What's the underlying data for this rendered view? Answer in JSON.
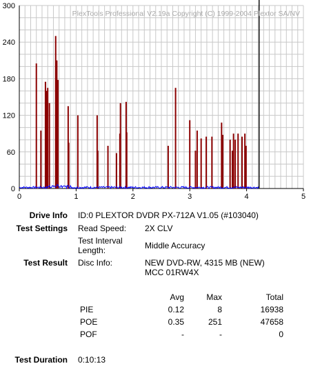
{
  "watermark": "PlexTools Professional V2.19a Copyright (C) 1999-2004 Plextor SA/NV",
  "chart_data": {
    "type": "bar",
    "x_ticks": [
      0,
      1,
      2,
      3,
      4,
      5
    ],
    "y_ticks": [
      0,
      60,
      120,
      180,
      240,
      300
    ],
    "xlim": [
      0,
      5
    ],
    "ylim": [
      0,
      300
    ],
    "grid": true,
    "end_marker_x": 4.22,
    "series": [
      {
        "color": "#8b0000",
        "type": "bar",
        "points": [
          [
            0.3,
            205
          ],
          [
            0.38,
            95
          ],
          [
            0.46,
            175
          ],
          [
            0.48,
            160
          ],
          [
            0.5,
            165
          ],
          [
            0.53,
            140
          ],
          [
            0.64,
            250
          ],
          [
            0.66,
            210
          ],
          [
            0.68,
            178
          ],
          [
            0.86,
            135
          ],
          [
            0.87,
            75
          ],
          [
            1.03,
            120
          ],
          [
            1.37,
            120
          ],
          [
            1.38,
            62
          ],
          [
            1.56,
            70
          ],
          [
            1.71,
            58
          ],
          [
            1.77,
            90
          ],
          [
            1.78,
            140
          ],
          [
            1.88,
            142
          ],
          [
            1.89,
            92
          ],
          [
            2.62,
            70
          ],
          [
            2.75,
            165
          ],
          [
            3.0,
            112
          ],
          [
            3.1,
            62
          ],
          [
            3.13,
            95
          ],
          [
            3.2,
            82
          ],
          [
            3.29,
            85
          ],
          [
            3.39,
            85
          ],
          [
            3.56,
            108
          ],
          [
            3.58,
            88
          ],
          [
            3.71,
            80
          ],
          [
            3.75,
            62
          ],
          [
            3.77,
            90
          ],
          [
            3.8,
            80
          ],
          [
            3.85,
            90
          ],
          [
            3.92,
            85
          ],
          [
            3.97,
            90
          ],
          [
            3.99,
            70
          ],
          [
            4.22,
            300
          ]
        ]
      },
      {
        "color": "#0000ff",
        "type": "line",
        "baseline_max": 7,
        "xmax": 4.22
      }
    ]
  },
  "info": {
    "drive_label": "Drive Info",
    "drive_value": "ID:0 PLEXTOR DVDR PX-712A V1.05 (#103040)",
    "settings_label": "Test Settings",
    "read_speed_label": "Read Speed:",
    "read_speed_value": "2X CLV",
    "interval_label_1": "Test Interval",
    "interval_label_2": "Length:",
    "interval_value": "Middle Accuracy",
    "result_label": "Test Result",
    "disc_label": "Disc Info:",
    "disc_value_1": "NEW DVD-RW, 4315 MB (NEW)",
    "disc_value_2": "MCC 01RW4X"
  },
  "stats": {
    "headers": {
      "avg": "Avg",
      "max": "Max",
      "total": "Total"
    },
    "rows": [
      {
        "name": "PIE",
        "avg": "0.12",
        "max": "8",
        "total": "16938"
      },
      {
        "name": "POE",
        "avg": "0.35",
        "max": "251",
        "total": "47658"
      },
      {
        "name": "POF",
        "avg": "-",
        "max": "-",
        "total": "0"
      }
    ]
  },
  "duration": {
    "label": "Test Duration",
    "value": "0:10:13"
  }
}
